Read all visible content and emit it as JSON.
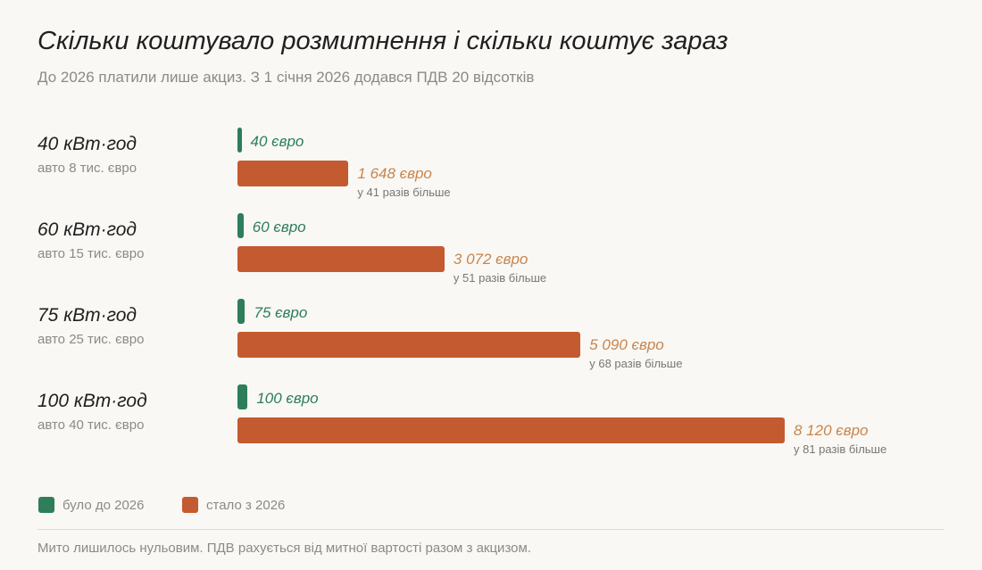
{
  "header": {
    "title": "Скільки коштувало розмитнення і скільки коштує зараз",
    "subtitle": "До 2026 платили лише акциз. З 1 січня 2026 додався ПДВ 20 відсотків"
  },
  "chart_data": {
    "type": "bar",
    "orientation": "horizontal",
    "categories": [
      "40 кВт·год",
      "60 кВт·год",
      "75 кВт·год",
      "100 кВт·год"
    ],
    "category_notes": [
      "авто 8 тис. євро",
      "авто 15 тис. євро",
      "авто 25 тис. євро",
      "авто 40 тис. євро"
    ],
    "series": [
      {
        "name": "було до 2026",
        "values": [
          40,
          60,
          75,
          100
        ],
        "labels": [
          "40 євро",
          "60 євро",
          "75 євро",
          "100 євро"
        ],
        "color": "#2e7d5b"
      },
      {
        "name": "стало з 2026",
        "values": [
          1648,
          3072,
          5090,
          8120
        ],
        "labels": [
          "1 648 євро",
          "3 072 євро",
          "5 090 євро",
          "8 120 євро"
        ],
        "color": "#c45a2f"
      }
    ],
    "annotations": [
      "у 41 разів більше",
      "у 51 разів більше",
      "у 68 разів більше",
      "у 81 разів більше"
    ],
    "xlim": [
      0,
      8120
    ],
    "legend": "bottom-left",
    "grid": false
  },
  "legend": {
    "old_label": "було до 2026",
    "new_label": "стало з 2026"
  },
  "footnote": "Мито лишилось нульовим. ПДВ рахується від митної вартості разом з акцизом."
}
